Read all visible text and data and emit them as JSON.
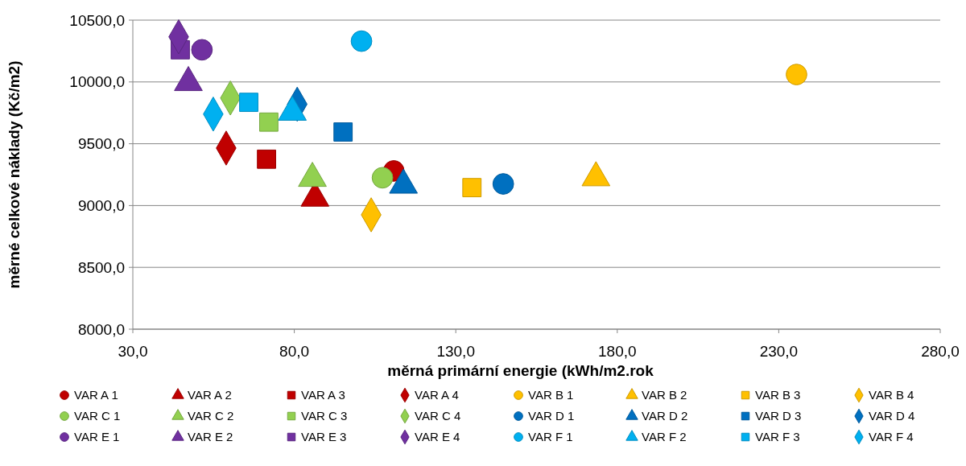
{
  "chart_data": {
    "type": "scatter",
    "xlabel": "měrná primární energie (kWh/m2.rok",
    "ylabel": "měrné celkové náklady (Kč/m2)",
    "xlim": [
      30,
      280
    ],
    "xticks": [
      {
        "value": 30,
        "label": "30,0"
      },
      {
        "value": 80,
        "label": "80,0"
      },
      {
        "value": 130,
        "label": "130,0"
      },
      {
        "value": 180,
        "label": "180,0"
      },
      {
        "value": 230,
        "label": "230,0"
      },
      {
        "value": 280,
        "label": "280,0"
      }
    ],
    "ylim": [
      8000,
      10500
    ],
    "yticks": [
      {
        "value": 8000,
        "label": "8000,0"
      },
      {
        "value": 8500,
        "label": "8500,0"
      },
      {
        "value": 9000,
        "label": "9000,0"
      },
      {
        "value": 9500,
        "label": "9500,0"
      },
      {
        "value": 10000,
        "label": "10000,0"
      },
      {
        "value": 10500,
        "label": "10500,0"
      }
    ],
    "grid": "y",
    "legend": "bottom",
    "series": [
      {
        "name": "VAR A 1",
        "color": "#c00000",
        "marker": "circle",
        "x": [
          110.8
        ],
        "values": [
          9280
        ]
      },
      {
        "name": "VAR A 2",
        "color": "#c00000",
        "marker": "triangle",
        "x": [
          86.4
        ],
        "values": [
          9060
        ]
      },
      {
        "name": "VAR A 3",
        "color": "#c00000",
        "marker": "square",
        "x": [
          71.4
        ],
        "values": [
          9375
        ]
      },
      {
        "name": "VAR A 4",
        "color": "#c00000",
        "marker": "diamond",
        "x": [
          58.9
        ],
        "values": [
          9465
        ]
      },
      {
        "name": "VAR B 1",
        "color": "#ffc000",
        "marker": "circle",
        "x": [
          235.5
        ],
        "values": [
          10060
        ]
      },
      {
        "name": "VAR B 2",
        "color": "#ffc000",
        "marker": "triangle",
        "x": [
          173.4
        ],
        "values": [
          9225
        ]
      },
      {
        "name": "VAR B 3",
        "color": "#ffc000",
        "marker": "square",
        "x": [
          135
        ],
        "values": [
          9145
        ]
      },
      {
        "name": "VAR B 4",
        "color": "#ffc000",
        "marker": "diamond",
        "x": [
          103.8
        ],
        "values": [
          8925
        ]
      },
      {
        "name": "VAR C 1",
        "color": "#92d050",
        "marker": "circle",
        "x": [
          107.3
        ],
        "values": [
          9225
        ]
      },
      {
        "name": "VAR C 2",
        "color": "#92d050",
        "marker": "triangle",
        "x": [
          85.6
        ],
        "values": [
          9220
        ]
      },
      {
        "name": "VAR C 3",
        "color": "#92d050",
        "marker": "square",
        "x": [
          72.1
        ],
        "values": [
          9675
        ]
      },
      {
        "name": "VAR C 4",
        "color": "#92d050",
        "marker": "diamond",
        "x": [
          60.2
        ],
        "values": [
          9870
        ]
      },
      {
        "name": "VAR D 1",
        "color": "#0070c0",
        "marker": "circle",
        "x": [
          144.7
        ],
        "values": [
          9175
        ]
      },
      {
        "name": "VAR D 2",
        "color": "#0070c0",
        "marker": "triangle",
        "x": [
          113.8
        ],
        "values": [
          9165
        ]
      },
      {
        "name": "VAR D 3",
        "color": "#0070c0",
        "marker": "square",
        "x": [
          95.1
        ],
        "values": [
          9595
        ]
      },
      {
        "name": "VAR D 4",
        "color": "#0070c0",
        "marker": "diamond",
        "x": [
          80.9
        ],
        "values": [
          9820
        ]
      },
      {
        "name": "VAR E 1",
        "color": "#7030a0",
        "marker": "circle",
        "x": [
          51.4
        ],
        "values": [
          10260
        ]
      },
      {
        "name": "VAR E 2",
        "color": "#7030a0",
        "marker": "triangle",
        "x": [
          47.2
        ],
        "values": [
          9995
        ]
      },
      {
        "name": "VAR E 3",
        "color": "#7030a0",
        "marker": "square",
        "x": [
          44.7
        ],
        "values": [
          10260
        ]
      },
      {
        "name": "VAR E 4",
        "color": "#7030a0",
        "marker": "diamond",
        "x": [
          44.2
        ],
        "values": [
          10365
        ]
      },
      {
        "name": "VAR F 1",
        "color": "#00b0f0",
        "marker": "circle",
        "x": [
          100.8
        ],
        "values": [
          10330
        ]
      },
      {
        "name": "VAR F 2",
        "color": "#00b0f0",
        "marker": "triangle",
        "x": [
          79.4
        ],
        "values": [
          9755
        ]
      },
      {
        "name": "VAR F 3",
        "color": "#00b0f0",
        "marker": "square",
        "x": [
          65.9
        ],
        "values": [
          9835
        ]
      },
      {
        "name": "VAR F 4",
        "color": "#00b0f0",
        "marker": "diamond",
        "x": [
          54.9
        ],
        "values": [
          9740
        ]
      }
    ]
  }
}
